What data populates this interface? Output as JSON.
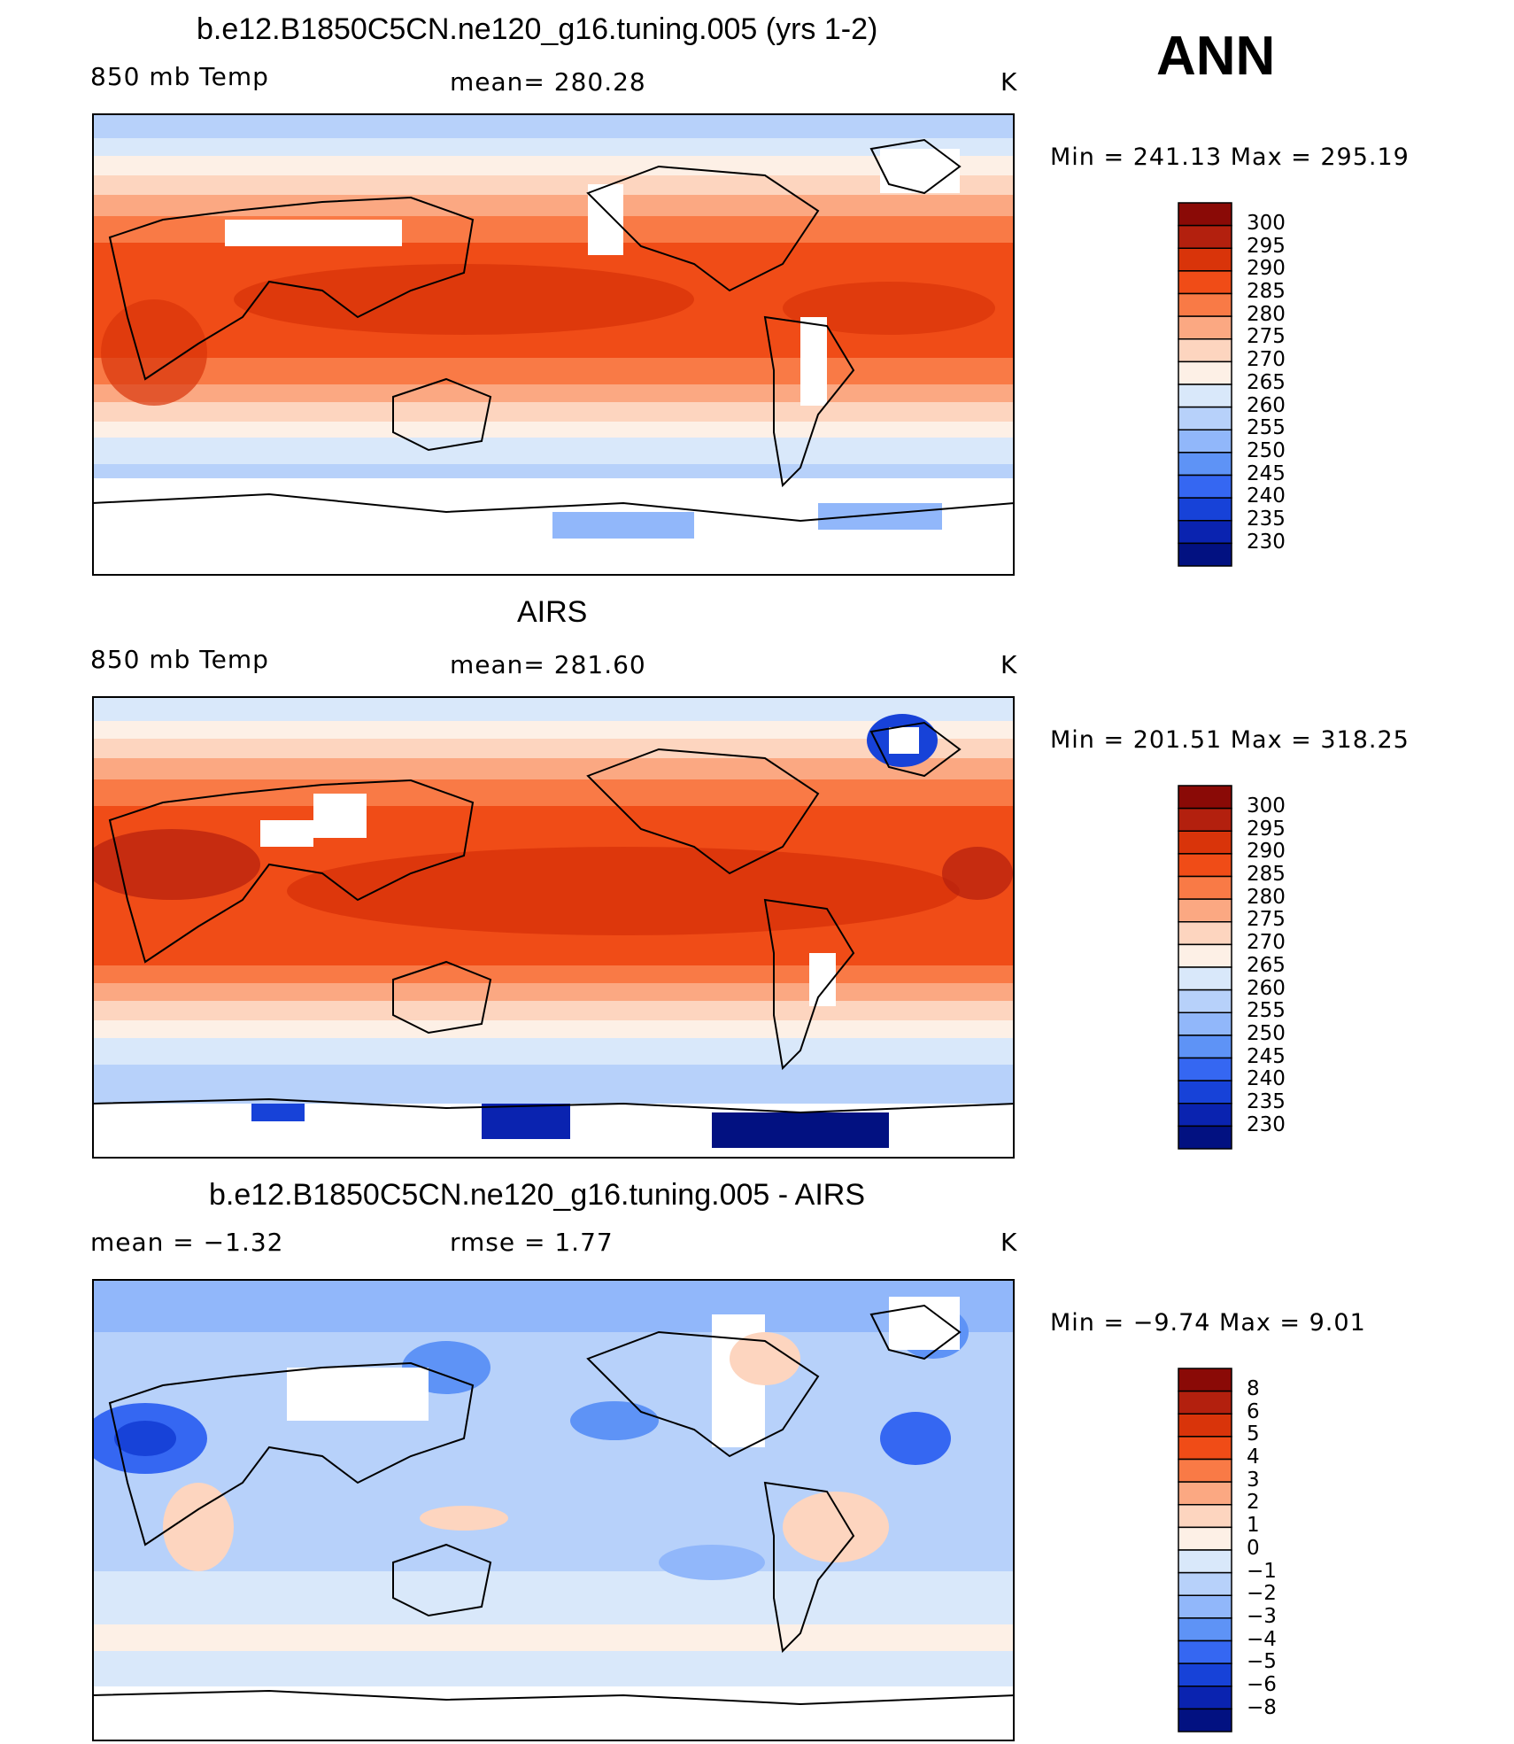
{
  "figure": {
    "season": "ANN"
  },
  "panels": [
    {
      "id": "model",
      "title": "b.e12.B1850C5CN.ne120_g16.tuning.005 (yrs 1-2)",
      "left_label": "850 mb Temp",
      "center_label": "mean=  280.28",
      "units": "K",
      "minmax": "Min  =  241.13  Max  =  295.19"
    },
    {
      "id": "obs",
      "title": "AIRS",
      "left_label": "850 mb Temp",
      "center_label": "mean=  281.60",
      "units": "K",
      "minmax": "Min  =  201.51  Max  =  318.25"
    },
    {
      "id": "diff",
      "title": "b.e12.B1850C5CN.ne120_g16.tuning.005 - AIRS",
      "left_label": "mean  =    −1.32",
      "center_label": "rmse  =     1.77",
      "units": "K",
      "minmax": "Min  =    −9.74  Max  =      9.01"
    }
  ],
  "colorbars": [
    {
      "labels": [
        "300",
        "295",
        "290",
        "285",
        "280",
        "275",
        "270",
        "265",
        "260",
        "255",
        "250",
        "245",
        "240",
        "235",
        "230"
      ],
      "colors": [
        "#8a0a06",
        "#b3200e",
        "#d9340a",
        "#f04c17",
        "#f97a46",
        "#fba882",
        "#fdd5bf",
        "#fdf0e6",
        "#d9e8fa",
        "#b7d1fa",
        "#91b7fa",
        "#5e93f6",
        "#3567f2",
        "#1742d8",
        "#0a23b0",
        "#021181"
      ]
    },
    {
      "labels": [
        "300",
        "295",
        "290",
        "285",
        "280",
        "275",
        "270",
        "265",
        "260",
        "255",
        "250",
        "245",
        "240",
        "235",
        "230"
      ],
      "colors": [
        "#8a0a06",
        "#b3200e",
        "#d9340a",
        "#f04c17",
        "#f97a46",
        "#fba882",
        "#fdd5bf",
        "#fdf0e6",
        "#d9e8fa",
        "#b7d1fa",
        "#91b7fa",
        "#5e93f6",
        "#3567f2",
        "#1742d8",
        "#0a23b0",
        "#021181"
      ]
    },
    {
      "labels": [
        "8",
        "6",
        "5",
        "4",
        "3",
        "2",
        "1",
        "0",
        "−1",
        "−2",
        "−3",
        "−4",
        "−5",
        "−6",
        "−8"
      ],
      "colors": [
        "#8a0a06",
        "#b3200e",
        "#d9340a",
        "#f04c17",
        "#f97a46",
        "#fba882",
        "#fdd5bf",
        "#fdf0e6",
        "#d9e8fa",
        "#b7d1fa",
        "#91b7fa",
        "#5e93f6",
        "#3567f2",
        "#1742d8",
        "#0a23b0",
        "#021181"
      ]
    }
  ],
  "chart_data": {
    "type": "heatmap",
    "variable": "850 mb Temp",
    "units": "K",
    "season": "ANN",
    "panels": [
      {
        "title": "b.e12.B1850C5CN.ne120_g16.tuning.005 (yrs 1-2)",
        "mean": 280.28,
        "min": 241.13,
        "max": 295.19,
        "contour_levels": [
          230,
          235,
          240,
          245,
          250,
          255,
          260,
          265,
          270,
          275,
          280,
          285,
          290,
          295,
          300
        ]
      },
      {
        "title": "AIRS",
        "mean": 281.6,
        "min": 201.51,
        "max": 318.25,
        "contour_levels": [
          230,
          235,
          240,
          245,
          250,
          255,
          260,
          265,
          270,
          275,
          280,
          285,
          290,
          295,
          300
        ]
      },
      {
        "title": "b.e12.B1850C5CN.ne120_g16.tuning.005 - AIRS",
        "mean": -1.32,
        "rmse": 1.77,
        "min": -9.74,
        "max": 9.01,
        "contour_levels": [
          -8,
          -6,
          -5,
          -4,
          -3,
          -2,
          -1,
          0,
          1,
          2,
          3,
          4,
          5,
          6,
          8
        ]
      }
    ]
  }
}
